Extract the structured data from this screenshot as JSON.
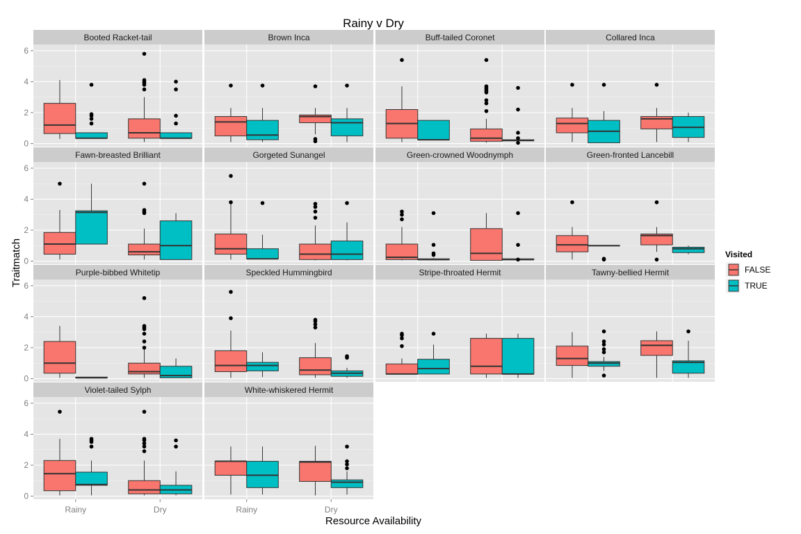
{
  "chart_data": {
    "type": "box",
    "title": "Rainy v Dry",
    "xlabel": "Resource Availability",
    "ylabel": "Traitmatch",
    "categories": [
      "Rainy",
      "Dry"
    ],
    "ylim": [
      -0.2,
      6.4
    ],
    "yticks": [
      0,
      2,
      4,
      6
    ],
    "legend": {
      "title": "Visited",
      "position": "right",
      "entries": [
        {
          "name": "FALSE",
          "color": "#F8766D"
        },
        {
          "name": "TRUE",
          "color": "#00BFC4"
        }
      ]
    },
    "panel_background": "#E5E5E5",
    "strip_background": "#CCCCCC",
    "grid": true,
    "panels": [
      {
        "name": "Booted Racket-tail",
        "boxes": [
          {
            "x": "Rainy",
            "visited": "FALSE",
            "q1": 0.65,
            "median": 1.2,
            "q3": 2.6,
            "lo": 0.3,
            "hi": 4.1,
            "outliers": []
          },
          {
            "x": "Rainy",
            "visited": "TRUE",
            "q1": 0.35,
            "median": 0.35,
            "q3": 0.7,
            "lo": 0.35,
            "hi": 0.7,
            "outliers": [
              1.3,
              1.6,
              1.8,
              1.9,
              3.8
            ]
          },
          {
            "x": "Dry",
            "visited": "FALSE",
            "q1": 0.35,
            "median": 0.7,
            "q3": 1.6,
            "lo": 0.1,
            "hi": 3.0,
            "outliers": [
              3.5,
              3.8,
              3.9,
              4.0,
              4.1,
              5.8
            ]
          },
          {
            "x": "Dry",
            "visited": "TRUE",
            "q1": 0.35,
            "median": 0.35,
            "q3": 0.7,
            "lo": 0.35,
            "hi": 0.7,
            "outliers": [
              1.3,
              1.8,
              3.5,
              4.0
            ]
          }
        ]
      },
      {
        "name": "Brown Inca",
        "boxes": [
          {
            "x": "Rainy",
            "visited": "FALSE",
            "q1": 0.5,
            "median": 1.4,
            "q3": 1.75,
            "lo": 0.1,
            "hi": 2.3,
            "outliers": [
              3.75
            ]
          },
          {
            "x": "Rainy",
            "visited": "TRUE",
            "q1": 0.25,
            "median": 0.55,
            "q3": 1.5,
            "lo": 0.1,
            "hi": 2.3,
            "outliers": [
              3.75
            ]
          },
          {
            "x": "Dry",
            "visited": "FALSE",
            "q1": 1.35,
            "median": 1.75,
            "q3": 1.85,
            "lo": 0.6,
            "hi": 2.3,
            "outliers": [
              0.15,
              0.3,
              3.7
            ]
          },
          {
            "x": "Dry",
            "visited": "TRUE",
            "q1": 0.5,
            "median": 1.35,
            "q3": 1.6,
            "lo": 0.1,
            "hi": 2.3,
            "outliers": [
              3.75
            ]
          }
        ]
      },
      {
        "name": "Buff-tailed Coronet",
        "boxes": [
          {
            "x": "Rainy",
            "visited": "FALSE",
            "q1": 0.35,
            "median": 1.3,
            "q3": 2.2,
            "lo": 0.1,
            "hi": 3.7,
            "outliers": [
              5.4
            ]
          },
          {
            "x": "Rainy",
            "visited": "TRUE",
            "q1": 0.25,
            "median": 0.25,
            "q3": 1.5,
            "lo": 0.25,
            "hi": 1.5,
            "outliers": []
          },
          {
            "x": "Dry",
            "visited": "FALSE",
            "q1": 0.15,
            "median": 0.35,
            "q3": 0.95,
            "lo": 0.05,
            "hi": 1.6,
            "outliers": [
              2.1,
              2.6,
              2.8,
              3.3,
              3.4,
              3.5,
              3.6,
              3.7,
              5.4
            ]
          },
          {
            "x": "Dry",
            "visited": "TRUE",
            "q1": 0.2,
            "median": 0.2,
            "q3": 0.25,
            "lo": 0.2,
            "hi": 0.25,
            "outliers": [
              0.05,
              0.35,
              0.7,
              2.2,
              3.6
            ]
          }
        ]
      },
      {
        "name": "Collared Inca",
        "boxes": [
          {
            "x": "Rainy",
            "visited": "FALSE",
            "q1": 0.7,
            "median": 1.3,
            "q3": 1.65,
            "lo": 0.1,
            "hi": 2.3,
            "outliers": [
              3.8
            ]
          },
          {
            "x": "Rainy",
            "visited": "TRUE",
            "q1": 0.05,
            "median": 0.8,
            "q3": 1.5,
            "lo": 0.05,
            "hi": 2.1,
            "outliers": [
              3.8
            ]
          },
          {
            "x": "Dry",
            "visited": "FALSE",
            "q1": 0.95,
            "median": 1.6,
            "q3": 1.75,
            "lo": 0.1,
            "hi": 2.3,
            "outliers": [
              3.8
            ]
          },
          {
            "x": "Dry",
            "visited": "TRUE",
            "q1": 0.4,
            "median": 1.05,
            "q3": 1.75,
            "lo": 0.1,
            "hi": 2.0,
            "outliers": []
          }
        ]
      },
      {
        "name": "Fawn-breasted Brilliant",
        "boxes": [
          {
            "x": "Rainy",
            "visited": "FALSE",
            "q1": 0.45,
            "median": 1.1,
            "q3": 1.85,
            "lo": 0.1,
            "hi": 3.3,
            "outliers": [
              5.0
            ]
          },
          {
            "x": "Rainy",
            "visited": "TRUE",
            "q1": 1.1,
            "median": 3.15,
            "q3": 3.25,
            "lo": 1.1,
            "hi": 5.0,
            "outliers": []
          },
          {
            "x": "Dry",
            "visited": "FALSE",
            "q1": 0.4,
            "median": 0.6,
            "q3": 1.1,
            "lo": 0.1,
            "hi": 2.1,
            "outliers": [
              3.1,
              3.2,
              3.3,
              5.0
            ]
          },
          {
            "x": "Dry",
            "visited": "TRUE",
            "q1": 0.1,
            "median": 1.0,
            "q3": 2.6,
            "lo": 0.1,
            "hi": 3.1,
            "outliers": []
          }
        ]
      },
      {
        "name": "Gorgeted Sunangel",
        "boxes": [
          {
            "x": "Rainy",
            "visited": "FALSE",
            "q1": 0.45,
            "median": 0.8,
            "q3": 1.75,
            "lo": 0.1,
            "hi": 3.8,
            "outliers": [
              3.8,
              5.5
            ]
          },
          {
            "x": "Rainy",
            "visited": "TRUE",
            "q1": 0.15,
            "median": 0.15,
            "q3": 0.8,
            "lo": 0.15,
            "hi": 1.7,
            "outliers": [
              3.75
            ]
          },
          {
            "x": "Dry",
            "visited": "FALSE",
            "q1": 0.1,
            "median": 0.45,
            "q3": 1.1,
            "lo": 0.05,
            "hi": 2.3,
            "outliers": [
              2.8,
              3.2,
              3.5,
              3.7
            ]
          },
          {
            "x": "Dry",
            "visited": "TRUE",
            "q1": 0.1,
            "median": 0.45,
            "q3": 1.3,
            "lo": 0.05,
            "hi": 2.5,
            "outliers": [
              3.75
            ]
          }
        ]
      },
      {
        "name": "Green-crowned Woodnymph",
        "boxes": [
          {
            "x": "Rainy",
            "visited": "FALSE",
            "q1": 0.1,
            "median": 0.25,
            "q3": 1.1,
            "lo": 0.05,
            "hi": 2.2,
            "outliers": [
              2.7,
              3.0,
              3.2
            ]
          },
          {
            "x": "Rainy",
            "visited": "TRUE",
            "q1": 0.1,
            "median": 0.1,
            "q3": 0.15,
            "lo": 0.1,
            "hi": 0.2,
            "outliers": [
              0.4,
              0.5,
              1.05,
              3.1
            ]
          },
          {
            "x": "Dry",
            "visited": "FALSE",
            "q1": 0.05,
            "median": 0.5,
            "q3": 2.1,
            "lo": 0.05,
            "hi": 3.1,
            "outliers": []
          },
          {
            "x": "Dry",
            "visited": "TRUE",
            "q1": 0.1,
            "median": 0.1,
            "q3": 0.15,
            "lo": 0.1,
            "hi": 0.15,
            "outliers": [
              0.1,
              1.05,
              3.1
            ]
          }
        ]
      },
      {
        "name": "Green-fronted Lancebill",
        "boxes": [
          {
            "x": "Rainy",
            "visited": "FALSE",
            "q1": 0.6,
            "median": 1.05,
            "q3": 1.65,
            "lo": 0.1,
            "hi": 2.2,
            "outliers": [
              3.8
            ]
          },
          {
            "x": "Rainy",
            "visited": "TRUE",
            "q1": 1.0,
            "median": 1.0,
            "q3": 1.0,
            "lo": 1.0,
            "hi": 1.0,
            "outliers": [
              0.1,
              0.15
            ]
          },
          {
            "x": "Dry",
            "visited": "FALSE",
            "q1": 1.05,
            "median": 1.65,
            "q3": 1.75,
            "lo": 0.6,
            "hi": 2.2,
            "outliers": [
              0.1,
              3.8
            ]
          },
          {
            "x": "Dry",
            "visited": "TRUE",
            "q1": 0.55,
            "median": 0.8,
            "q3": 0.9,
            "lo": 0.45,
            "hi": 1.0,
            "outliers": []
          }
        ]
      },
      {
        "name": "Purple-bibbed Whitetip",
        "boxes": [
          {
            "x": "Rainy",
            "visited": "FALSE",
            "q1": 0.35,
            "median": 1.0,
            "q3": 2.4,
            "lo": 0.05,
            "hi": 3.4,
            "outliers": []
          },
          {
            "x": "Rainy",
            "visited": "TRUE",
            "q1": 0.05,
            "median": 0.05,
            "q3": 0.1,
            "lo": 0.05,
            "hi": 0.1,
            "outliers": []
          },
          {
            "x": "Dry",
            "visited": "FALSE",
            "q1": 0.3,
            "median": 0.45,
            "q3": 1.0,
            "lo": 0.05,
            "hi": 1.9,
            "outliers": [
              2.0,
              2.4,
              2.9,
              3.2,
              3.3,
              3.4,
              5.2
            ]
          },
          {
            "x": "Dry",
            "visited": "TRUE",
            "q1": 0.05,
            "median": 0.2,
            "q3": 0.8,
            "lo": 0.05,
            "hi": 1.3,
            "outliers": []
          }
        ]
      },
      {
        "name": "Speckled Hummingbird",
        "boxes": [
          {
            "x": "Rainy",
            "visited": "FALSE",
            "q1": 0.45,
            "median": 0.85,
            "q3": 1.8,
            "lo": 0.05,
            "hi": 3.1,
            "outliers": [
              3.9,
              5.6
            ]
          },
          {
            "x": "Rainy",
            "visited": "TRUE",
            "q1": 0.5,
            "median": 0.85,
            "q3": 1.05,
            "lo": 0.1,
            "hi": 1.7,
            "outliers": []
          },
          {
            "x": "Dry",
            "visited": "FALSE",
            "q1": 0.25,
            "median": 0.55,
            "q3": 1.35,
            "lo": 0.05,
            "hi": 2.3,
            "outliers": [
              3.3,
              3.5,
              3.7,
              3.8
            ]
          },
          {
            "x": "Dry",
            "visited": "TRUE",
            "q1": 0.15,
            "median": 0.35,
            "q3": 0.5,
            "lo": 0.05,
            "hi": 0.7,
            "outliers": [
              1.35,
              1.45
            ]
          }
        ]
      },
      {
        "name": "Stripe-throated Hermit",
        "boxes": [
          {
            "x": "Rainy",
            "visited": "FALSE",
            "q1": 0.3,
            "median": 0.3,
            "q3": 0.95,
            "lo": 0.3,
            "hi": 1.3,
            "outliers": [
              2.1,
              2.6,
              2.8,
              2.9
            ]
          },
          {
            "x": "Rainy",
            "visited": "TRUE",
            "q1": 0.3,
            "median": 0.65,
            "q3": 1.25,
            "lo": 0.3,
            "hi": 2.2,
            "outliers": [
              2.9
            ]
          },
          {
            "x": "Dry",
            "visited": "FALSE",
            "q1": 0.3,
            "median": 0.8,
            "q3": 2.6,
            "lo": 0.05,
            "hi": 2.9,
            "outliers": []
          },
          {
            "x": "Dry",
            "visited": "TRUE",
            "q1": 0.3,
            "median": 0.3,
            "q3": 2.6,
            "lo": 0.05,
            "hi": 2.9,
            "outliers": []
          }
        ]
      },
      {
        "name": "Tawny-bellied Hermit",
        "boxes": [
          {
            "x": "Rainy",
            "visited": "FALSE",
            "q1": 0.85,
            "median": 1.3,
            "q3": 2.1,
            "lo": 0.05,
            "hi": 3.0,
            "outliers": []
          },
          {
            "x": "Rainy",
            "visited": "TRUE",
            "q1": 0.8,
            "median": 1.0,
            "q3": 1.1,
            "lo": 0.5,
            "hi": 1.4,
            "outliers": [
              0.2,
              1.7,
              1.9,
              2.2,
              2.4,
              3.05
            ]
          },
          {
            "x": "Dry",
            "visited": "FALSE",
            "q1": 1.5,
            "median": 2.15,
            "q3": 2.45,
            "lo": 0.05,
            "hi": 3.05,
            "outliers": []
          },
          {
            "x": "Dry",
            "visited": "TRUE",
            "q1": 0.35,
            "median": 1.05,
            "q3": 1.15,
            "lo": 0.05,
            "hi": 2.45,
            "outliers": [
              3.05
            ]
          }
        ]
      },
      {
        "name": "Violet-tailed Sylph",
        "boxes": [
          {
            "x": "Rainy",
            "visited": "FALSE",
            "q1": 0.35,
            "median": 1.45,
            "q3": 2.3,
            "lo": 0.05,
            "hi": 3.7,
            "outliers": [
              5.45
            ]
          },
          {
            "x": "Rainy",
            "visited": "TRUE",
            "q1": 0.7,
            "median": 0.75,
            "q3": 1.55,
            "lo": 0.05,
            "hi": 2.3,
            "outliers": [
              3.2,
              3.5,
              3.6,
              3.7
            ]
          },
          {
            "x": "Dry",
            "visited": "FALSE",
            "q1": 0.15,
            "median": 0.4,
            "q3": 1.0,
            "lo": 0.05,
            "hi": 2.3,
            "outliers": [
              2.9,
              3.2,
              3.4,
              3.6,
              3.7,
              5.45
            ]
          },
          {
            "x": "Dry",
            "visited": "TRUE",
            "q1": 0.15,
            "median": 0.4,
            "q3": 0.7,
            "lo": 0.05,
            "hi": 1.6,
            "outliers": [
              3.2,
              3.6
            ]
          }
        ]
      },
      {
        "name": "White-whiskered Hermit",
        "boxes": [
          {
            "x": "Rainy",
            "visited": "FALSE",
            "q1": 1.35,
            "median": 2.25,
            "q3": 2.25,
            "lo": 0.1,
            "hi": 3.2,
            "outliers": []
          },
          {
            "x": "Rainy",
            "visited": "TRUE",
            "q1": 0.55,
            "median": 1.35,
            "q3": 2.25,
            "lo": 0.1,
            "hi": 3.2,
            "outliers": []
          },
          {
            "x": "Dry",
            "visited": "FALSE",
            "q1": 0.95,
            "median": 2.2,
            "q3": 2.25,
            "lo": 0.05,
            "hi": 3.25,
            "outliers": []
          },
          {
            "x": "Dry",
            "visited": "TRUE",
            "q1": 0.55,
            "median": 0.9,
            "q3": 1.05,
            "lo": 0.1,
            "hi": 1.6,
            "outliers": [
              1.8,
              2.05,
              2.25,
              3.2
            ]
          }
        ]
      }
    ]
  }
}
